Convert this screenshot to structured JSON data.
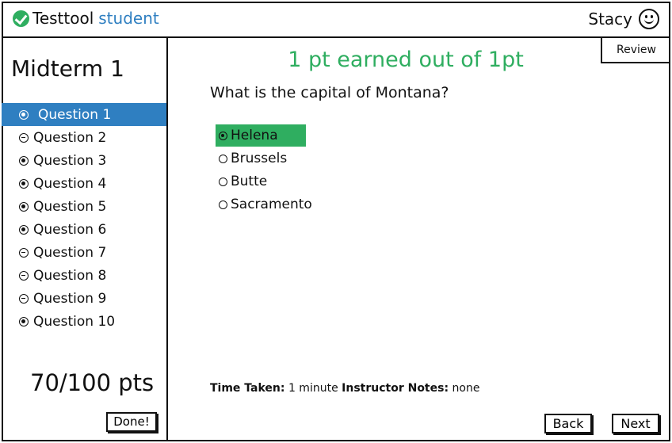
{
  "header": {
    "brand_name": "Testtool",
    "brand_sub": "student",
    "user_name": "Stacy",
    "accent_color": "#2f7fc1",
    "success_color": "#2fae60"
  },
  "sidebar": {
    "exam_title": "Midterm 1",
    "questions": [
      {
        "label": "Question 1",
        "status": "correct",
        "active": true
      },
      {
        "label": "Question 2",
        "status": "wrong",
        "active": false
      },
      {
        "label": "Question 3",
        "status": "correct",
        "active": false
      },
      {
        "label": "Question 4",
        "status": "correct",
        "active": false
      },
      {
        "label": "Question 5",
        "status": "correct",
        "active": false
      },
      {
        "label": "Question 6",
        "status": "correct",
        "active": false
      },
      {
        "label": "Question 7",
        "status": "wrong",
        "active": false
      },
      {
        "label": "Question 8",
        "status": "wrong",
        "active": false
      },
      {
        "label": "Question 9",
        "status": "wrong",
        "active": false
      },
      {
        "label": "Question 10",
        "status": "correct",
        "active": false
      }
    ],
    "score": "70/100 pts",
    "done_label": "Done!"
  },
  "main": {
    "review_label": "Review",
    "result_text": "1 pt earned out of 1pt",
    "question_text": "What is the capital of Montana?",
    "answers": [
      {
        "text": "Helena",
        "selected": true
      },
      {
        "text": "Brussels",
        "selected": false
      },
      {
        "text": "Butte",
        "selected": false
      },
      {
        "text": "Sacramento",
        "selected": false
      }
    ],
    "time_taken_label": "Time Taken:",
    "time_taken_value": "1 minute",
    "notes_label": "Instructor Notes:",
    "notes_value": "none",
    "back_label": "Back",
    "next_label": "Next"
  }
}
